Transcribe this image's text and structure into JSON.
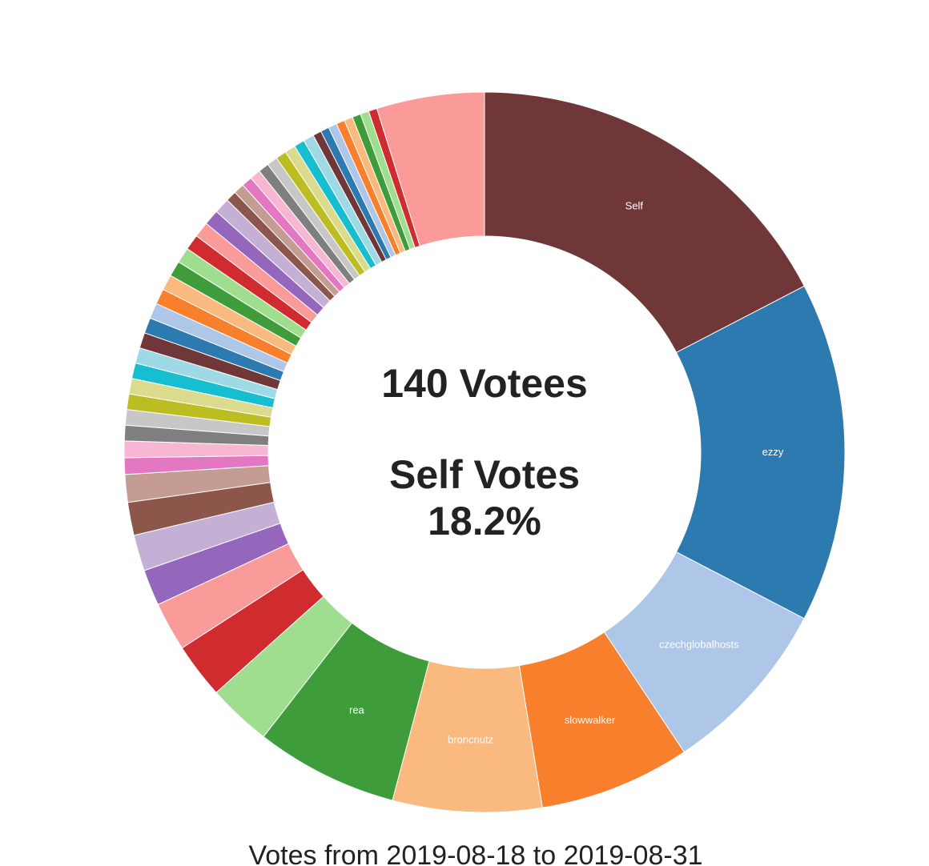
{
  "chart_data": {
    "type": "pie",
    "donut": true,
    "center_lines": [
      "140 Votees",
      "Self Votes",
      "18.2%"
    ],
    "caption": "Votes from 2019-08-18 to 2019-08-31",
    "slices": [
      {
        "label": "Self",
        "value": 18.2,
        "color": "#6f3737"
      },
      {
        "label": "ezzy",
        "value": 16.0,
        "color": "#2c7ab0"
      },
      {
        "label": "czechglobalhosts",
        "value": 8.4,
        "color": "#aec7e8"
      },
      {
        "label": "slowwalker",
        "value": 7.1,
        "color": "#f87f2c"
      },
      {
        "label": "broncnutz",
        "value": 7.0,
        "color": "#fab97f"
      },
      {
        "label": "rea",
        "value": 6.7,
        "color": "#3e9d3a"
      },
      {
        "label": "",
        "value": 3.0,
        "color": "#a0de8f"
      },
      {
        "label": "",
        "value": 2.6,
        "color": "#d02c30"
      },
      {
        "label": "",
        "value": 2.3,
        "color": "#fa9a99"
      },
      {
        "label": "",
        "value": 1.7,
        "color": "#9467bd"
      },
      {
        "label": "",
        "value": 1.7,
        "color": "#c5b0d5"
      },
      {
        "label": "",
        "value": 1.55,
        "color": "#8c564b"
      },
      {
        "label": "",
        "value": 1.3,
        "color": "#c49c94"
      },
      {
        "label": "",
        "value": 0.78,
        "color": "#e377c2"
      },
      {
        "label": "",
        "value": 0.78,
        "color": "#f7b6d2"
      },
      {
        "label": "",
        "value": 0.73,
        "color": "#7f7f7f"
      },
      {
        "label": "",
        "value": 0.73,
        "color": "#c7c7c7"
      },
      {
        "label": "",
        "value": 0.73,
        "color": "#bcbd22"
      },
      {
        "label": "",
        "value": 0.73,
        "color": "#dbdb8d"
      },
      {
        "label": "",
        "value": 0.73,
        "color": "#17becf"
      },
      {
        "label": "",
        "value": 0.73,
        "color": "#9edae5"
      },
      {
        "label": "",
        "value": 0.73,
        "color": "#6f3737"
      },
      {
        "label": "",
        "value": 0.73,
        "color": "#2c7ab0"
      },
      {
        "label": "",
        "value": 0.73,
        "color": "#aec7e8"
      },
      {
        "label": "",
        "value": 0.73,
        "color": "#f87f2c"
      },
      {
        "label": "",
        "value": 0.73,
        "color": "#fab97f"
      },
      {
        "label": "",
        "value": 0.73,
        "color": "#3e9d3a"
      },
      {
        "label": "",
        "value": 0.73,
        "color": "#a0de8f"
      },
      {
        "label": "",
        "value": 0.73,
        "color": "#d02c30"
      },
      {
        "label": "",
        "value": 0.73,
        "color": "#fa9a99"
      },
      {
        "label": "",
        "value": 0.73,
        "color": "#9467bd"
      },
      {
        "label": "",
        "value": 0.73,
        "color": "#c5b0d5"
      },
      {
        "label": "",
        "value": 0.5,
        "color": "#8c564b"
      },
      {
        "label": "",
        "value": 0.5,
        "color": "#c49c94"
      },
      {
        "label": "",
        "value": 0.5,
        "color": "#e377c2"
      },
      {
        "label": "",
        "value": 0.5,
        "color": "#f7b6d2"
      },
      {
        "label": "",
        "value": 0.5,
        "color": "#7f7f7f"
      },
      {
        "label": "",
        "value": 0.5,
        "color": "#c7c7c7"
      },
      {
        "label": "",
        "value": 0.5,
        "color": "#bcbd22"
      },
      {
        "label": "",
        "value": 0.5,
        "color": "#dbdb8d"
      },
      {
        "label": "",
        "value": 0.5,
        "color": "#17becf"
      },
      {
        "label": "",
        "value": 0.5,
        "color": "#9edae5"
      },
      {
        "label": "",
        "value": 0.4,
        "color": "#6f3737"
      },
      {
        "label": "",
        "value": 0.4,
        "color": "#2c7ab0"
      },
      {
        "label": "",
        "value": 0.4,
        "color": "#aec7e8"
      },
      {
        "label": "",
        "value": 0.4,
        "color": "#f87f2c"
      },
      {
        "label": "",
        "value": 0.4,
        "color": "#fab97f"
      },
      {
        "label": "",
        "value": 0.4,
        "color": "#3e9d3a"
      },
      {
        "label": "",
        "value": 0.4,
        "color": "#a0de8f"
      },
      {
        "label": "",
        "value": 0.4,
        "color": "#d02c30"
      },
      {
        "label": "",
        "value": 5.06,
        "color": "#fa9a99"
      }
    ]
  }
}
